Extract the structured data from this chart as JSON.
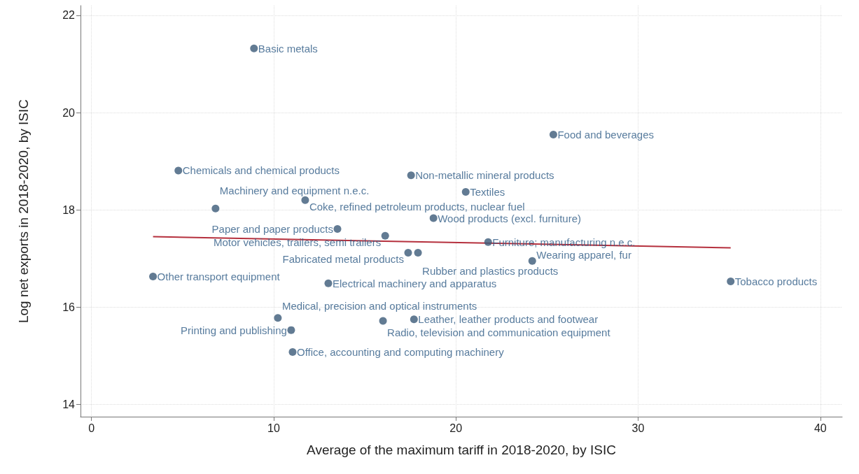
{
  "chart_data": {
    "type": "scatter",
    "xlabel": "Average of the maximum tariff in 2018-2020, by ISIC",
    "ylabel": "Log net exports in 2018-2020, by ISIC",
    "x": [
      8.92,
      25.35,
      4.77,
      17.54,
      20.54,
      11.73,
      6.81,
      18.77,
      13.5,
      16.12,
      21.77,
      17.38,
      17.92,
      24.19,
      35.08,
      3.38,
      13.0,
      10.23,
      16.0,
      17.7,
      10.96,
      11.04
    ],
    "series": [
      {
        "marker": "circle",
        "color": "#3b5a78",
        "values": [
          21.32,
          19.55,
          18.81,
          18.71,
          18.37,
          18.2,
          18.03,
          17.83,
          17.61,
          17.47,
          17.34,
          17.12,
          17.12,
          16.95,
          16.53,
          16.63,
          16.49,
          15.78,
          15.72,
          15.75,
          15.53,
          15.08
        ]
      },
      {
        "type": "line",
        "marker": "none",
        "color": "#b5303d",
        "x": [
          3.38,
          35.08
        ],
        "values": [
          17.45,
          17.22
        ]
      }
    ],
    "annotations": [
      {
        "text": "Basic metals",
        "x": 8.92,
        "y": 21.32
      },
      {
        "text": "Food and beverages",
        "x": 25.35,
        "y": 19.55
      },
      {
        "text": "Chemicals and chemical products",
        "x": 4.77,
        "y": 18.81
      },
      {
        "text": "Non-metallic mineral products",
        "x": 17.54,
        "y": 18.71
      },
      {
        "text": "Textiles",
        "x": 20.54,
        "y": 18.37
      },
      {
        "text": "Coke, refined petroleum products, nuclear fuel",
        "x": 11.73,
        "y": 18.2
      },
      {
        "text": "Machinery and equipment n.e.c.",
        "x": 6.81,
        "y": 18.03
      },
      {
        "text": "Wood products (excl. furniture)",
        "x": 18.77,
        "y": 17.83
      },
      {
        "text": "Paper and paper products",
        "x": 13.5,
        "y": 17.61
      },
      {
        "text": "Motor vehicles, trailers, semi trailers",
        "x": 16.12,
        "y": 17.47
      },
      {
        "text": "Furniture; manufacturing n.e.c.",
        "x": 21.77,
        "y": 17.34
      },
      {
        "text": "Fabricated metal products",
        "x": 17.38,
        "y": 17.12
      },
      {
        "text": "Rubber and plastics products",
        "x": 17.92,
        "y": 17.12
      },
      {
        "text": "Wearing apparel, fur",
        "x": 24.19,
        "y": 16.95
      },
      {
        "text": "Tobacco products",
        "x": 35.08,
        "y": 16.53
      },
      {
        "text": "Other transport equipment",
        "x": 3.38,
        "y": 16.63
      },
      {
        "text": "Electrical machinery and apparatus",
        "x": 13.0,
        "y": 16.49
      },
      {
        "text": "Medical, precision and optical instruments",
        "x": 10.23,
        "y": 15.78
      },
      {
        "text": "Radio, television and communication equipment",
        "x": 16.0,
        "y": 15.72
      },
      {
        "text": "Leather, leather products and footwear",
        "x": 17.7,
        "y": 15.75
      },
      {
        "text": "Printing and publishing",
        "x": 10.96,
        "y": 15.53
      },
      {
        "text": "Office, accounting and computing machinery",
        "x": 11.04,
        "y": 15.08
      }
    ],
    "xlim": [
      -0.6,
      41.2
    ],
    "ylim": [
      13.75,
      22.2
    ],
    "xticks": [
      0,
      10,
      20,
      30,
      40
    ],
    "yticks": [
      14,
      16,
      18,
      20,
      22
    ],
    "grid": true
  }
}
